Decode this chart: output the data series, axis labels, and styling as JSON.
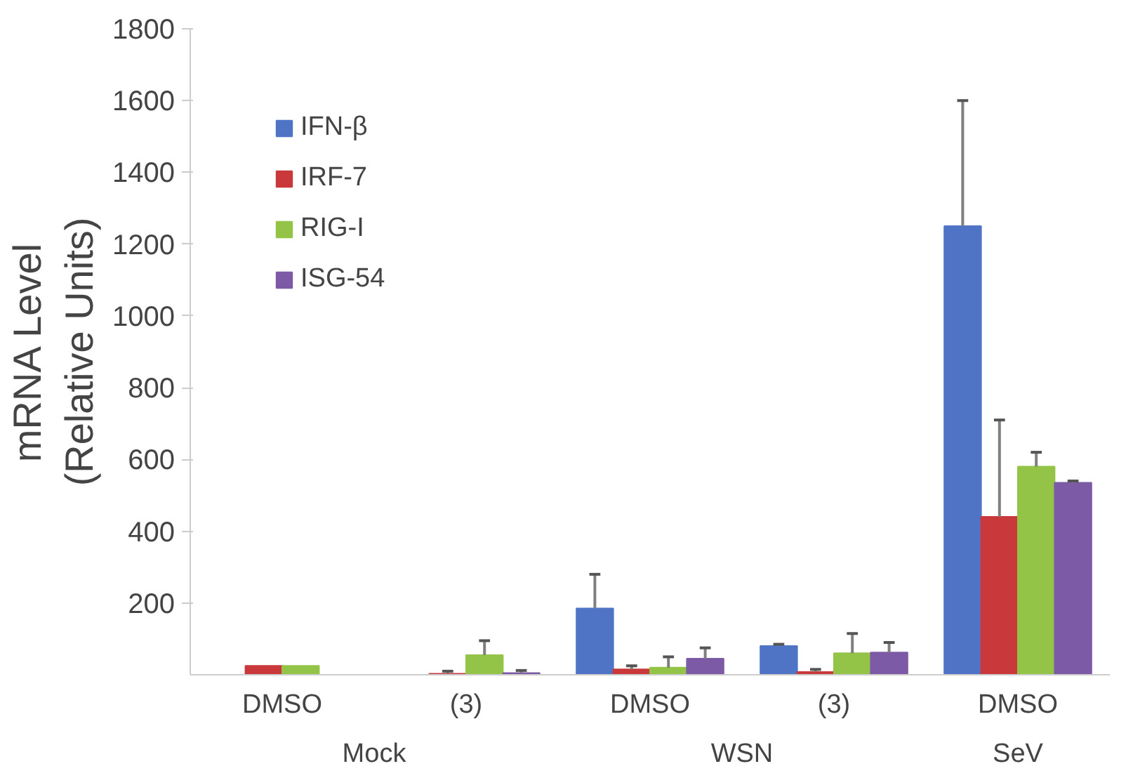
{
  "chart_data": {
    "type": "bar",
    "ylabel": "mRNA Level\n(Relative Units)",
    "categories": [
      "DMSO",
      "(3)",
      "DMSO",
      "(3)",
      "DMSO"
    ],
    "series": [
      {
        "name": "IFN-β",
        "color": "#4f74c6",
        "values": [
          0,
          0,
          185,
          80,
          1250
        ],
        "errors": [
          null,
          null,
          [
            185,
            280
          ],
          [
            80,
            85
          ],
          [
            1250,
            1600
          ]
        ]
      },
      {
        "name": "IRF-7",
        "color": "#c9383a",
        "values": [
          25,
          3,
          15,
          8,
          440
        ],
        "errors": [
          null,
          [
            3,
            10
          ],
          [
            15,
            25
          ],
          [
            8,
            15
          ],
          [
            440,
            710
          ]
        ]
      },
      {
        "name": "RIG-I",
        "color": "#94c447",
        "values": [
          25,
          55,
          20,
          60,
          580
        ],
        "errors": [
          null,
          [
            55,
            95
          ],
          [
            20,
            50
          ],
          [
            60,
            115
          ],
          [
            580,
            620
          ]
        ]
      },
      {
        "name": "ISG-54",
        "color": "#7d5aa6",
        "values": [
          0,
          5,
          45,
          62,
          535
        ],
        "errors": [
          null,
          [
            5,
            12
          ],
          [
            45,
            75
          ],
          [
            62,
            90
          ],
          [
            535,
            540
          ]
        ]
      }
    ],
    "annotations": [
      "Mock",
      "WSN",
      "SeV"
    ],
    "ylim": [
      0,
      1800
    ],
    "yticks": [
      200,
      400,
      600,
      800,
      1000,
      1200,
      1400,
      1600,
      1800
    ],
    "grid": false,
    "legend": "top left"
  }
}
